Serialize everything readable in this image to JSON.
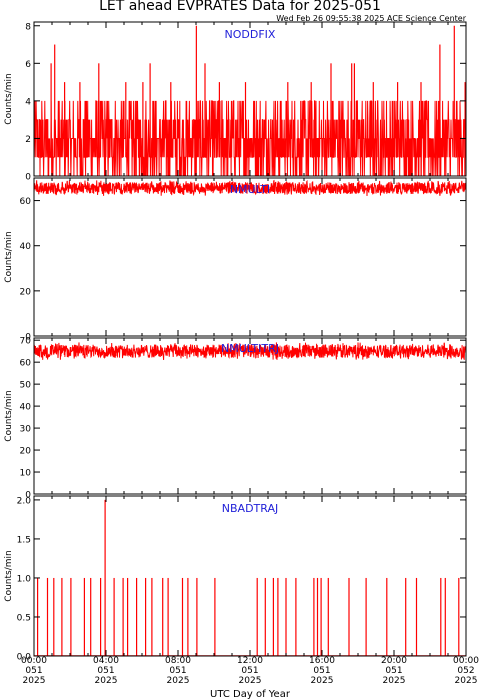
{
  "title": "LET ahead EVPRATES Data for 2025-051",
  "timestamp": "Wed Feb 26 09:55:38 2025 ACE Science Center",
  "xlabel": "UTC Day of Year",
  "colors": {
    "data": "#ff0000",
    "panel_label": "#1f1fd8",
    "axes": "#000000"
  },
  "x_ticks": [
    {
      "time": "00:00",
      "doy": "051",
      "year": "2025",
      "hour": 0
    },
    {
      "time": "04:00",
      "doy": "051",
      "year": "2025",
      "hour": 4
    },
    {
      "time": "08:00",
      "doy": "051",
      "year": "2025",
      "hour": 8
    },
    {
      "time": "12:00",
      "doy": "051",
      "year": "2025",
      "hour": 12
    },
    {
      "time": "16:00",
      "doy": "051",
      "year": "2025",
      "hour": 16
    },
    {
      "time": "20:00",
      "doy": "051",
      "year": "2025",
      "hour": 20
    },
    {
      "time": "00:00",
      "doy": "052",
      "year": "2025",
      "hour": 24
    }
  ],
  "chart_data": [
    {
      "type": "line",
      "name": "NODDFIX",
      "ylabel": "Counts/min",
      "ylim": [
        0,
        8.2
      ],
      "yticks": [
        0,
        2,
        4,
        6,
        8
      ],
      "ytick_labels": [
        "0",
        "2",
        "4",
        "6",
        "8"
      ],
      "xlim_hours": [
        0,
        24
      ],
      "levels": [
        0,
        1,
        2,
        3,
        4
      ],
      "spikes": [
        {
          "hour": 1.15,
          "value": 7
        },
        {
          "hour": 9.02,
          "value": 8
        },
        {
          "hour": 22.55,
          "value": 7
        },
        {
          "hour": 23.35,
          "value": 8
        },
        {
          "hour": 0.95,
          "value": 6
        },
        {
          "hour": 1.7,
          "value": 5
        },
        {
          "hour": 2.55,
          "value": 5
        },
        {
          "hour": 3.6,
          "value": 6
        },
        {
          "hour": 5.1,
          "value": 5
        },
        {
          "hour": 6.05,
          "value": 5
        },
        {
          "hour": 6.45,
          "value": 6
        },
        {
          "hour": 7.6,
          "value": 5
        },
        {
          "hour": 9.5,
          "value": 6
        },
        {
          "hour": 10.3,
          "value": 5
        },
        {
          "hour": 11.75,
          "value": 5
        },
        {
          "hour": 14.1,
          "value": 5
        },
        {
          "hour": 15.4,
          "value": 5
        },
        {
          "hour": 16.5,
          "value": 6
        },
        {
          "hour": 17.65,
          "value": 6
        },
        {
          "hour": 17.8,
          "value": 6
        },
        {
          "hour": 18.85,
          "value": 5
        },
        {
          "hour": 20.2,
          "value": 5
        },
        {
          "hour": 21.5,
          "value": 5
        },
        {
          "hour": 23.95,
          "value": 5
        }
      ]
    },
    {
      "type": "line",
      "name": "NMULTI",
      "ylabel": "Counts/min",
      "ylim": [
        0,
        70
      ],
      "yticks": [
        0,
        20,
        40,
        60
      ],
      "ytick_labels": [
        "0",
        "20",
        "40",
        "60"
      ],
      "xlim_hours": [
        0,
        24
      ],
      "mean": 65.5,
      "min": 62,
      "max": 69
    },
    {
      "type": "line",
      "name": "NMULTITRJ",
      "ylabel": "Counts/min",
      "ylim": [
        0,
        71
      ],
      "yticks": [
        0,
        10,
        20,
        30,
        40,
        50,
        60,
        70
      ],
      "ytick_labels": [
        "0",
        "10",
        "20",
        "30",
        "40",
        "50",
        "60",
        "70"
      ],
      "xlim_hours": [
        0,
        24
      ],
      "mean": 65,
      "min": 61,
      "max": 69
    },
    {
      "type": "line",
      "name": "NBADTRAJ",
      "ylabel": "Counts/min",
      "ylim": [
        0,
        2.05
      ],
      "yticks": [
        0,
        0.5,
        1.0,
        1.5,
        2.0
      ],
      "ytick_labels": [
        "0.0",
        "0.5",
        "1.0",
        "1.5",
        "2.0"
      ],
      "xlim_hours": [
        0,
        24
      ],
      "spikes": [
        {
          "hour": 0.2,
          "value": 1
        },
        {
          "hour": 0.75,
          "value": 1
        },
        {
          "hour": 1.1,
          "value": 1
        },
        {
          "hour": 1.55,
          "value": 1
        },
        {
          "hour": 2.05,
          "value": 1
        },
        {
          "hour": 2.8,
          "value": 1
        },
        {
          "hour": 3.15,
          "value": 1
        },
        {
          "hour": 3.7,
          "value": 1
        },
        {
          "hour": 3.95,
          "value": 2
        },
        {
          "hour": 4.45,
          "value": 1
        },
        {
          "hour": 4.95,
          "value": 1
        },
        {
          "hour": 5.2,
          "value": 1
        },
        {
          "hour": 5.7,
          "value": 1
        },
        {
          "hour": 6.2,
          "value": 1
        },
        {
          "hour": 6.55,
          "value": 1
        },
        {
          "hour": 7.15,
          "value": 1
        },
        {
          "hour": 7.45,
          "value": 1
        },
        {
          "hour": 8.25,
          "value": 1
        },
        {
          "hour": 8.55,
          "value": 1
        },
        {
          "hour": 9.05,
          "value": 1
        },
        {
          "hour": 10.05,
          "value": 1
        },
        {
          "hour": 12.4,
          "value": 1
        },
        {
          "hour": 12.85,
          "value": 1
        },
        {
          "hour": 13.3,
          "value": 1
        },
        {
          "hour": 13.55,
          "value": 1
        },
        {
          "hour": 14.0,
          "value": 1
        },
        {
          "hour": 14.55,
          "value": 1
        },
        {
          "hour": 15.55,
          "value": 1
        },
        {
          "hour": 15.75,
          "value": 1
        },
        {
          "hour": 15.95,
          "value": 1
        },
        {
          "hour": 16.35,
          "value": 1
        },
        {
          "hour": 17.5,
          "value": 1
        },
        {
          "hour": 18.45,
          "value": 1
        },
        {
          "hour": 19.6,
          "value": 1
        },
        {
          "hour": 20.65,
          "value": 1
        },
        {
          "hour": 21.25,
          "value": 1
        },
        {
          "hour": 22.6,
          "value": 1
        },
        {
          "hour": 22.85,
          "value": 1
        },
        {
          "hour": 23.6,
          "value": 1
        }
      ]
    }
  ]
}
